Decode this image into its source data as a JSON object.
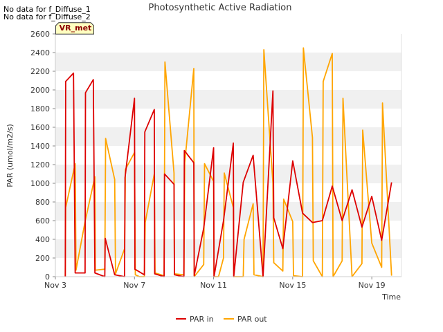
{
  "notes": [
    "No data for f_Diffuse_1",
    "No data for f_Diffuse_2"
  ],
  "badge": "VR_met",
  "colors": {
    "par_in": "#dd0000",
    "par_out": "#ffa500",
    "band": "#f0f0f0",
    "badge_bg": "#ffffc0"
  },
  "chart_data": {
    "type": "line",
    "title": "Photosynthetic Active Radiation",
    "xlabel": "Time",
    "ylabel": "PAR (umol/m2/s)",
    "ylim": [
      0,
      2600
    ],
    "xlim": [
      "2023-11-03T00:00",
      "2023-11-20T12:00"
    ],
    "yticks": [
      0,
      200,
      400,
      600,
      800,
      1000,
      1200,
      1400,
      1600,
      1800,
      2000,
      2200,
      2400,
      2600
    ],
    "xticks": [
      {
        "label": "Nov 3",
        "x": "2023-11-03T00:00"
      },
      {
        "label": "Nov 7",
        "x": "2023-11-07T00:00"
      },
      {
        "label": "Nov 11",
        "x": "2023-11-11T00:00"
      },
      {
        "label": "Nov 15",
        "x": "2023-11-15T00:00"
      },
      {
        "label": "Nov 19",
        "x": "2023-11-19T00:00"
      }
    ],
    "legend_position": "bottom",
    "series": [
      {
        "name": "PAR in",
        "points": [
          [
            "2023-11-03T12:00",
            0
          ],
          [
            "2023-11-03T12:30",
            2090
          ],
          [
            "2023-11-03T22:00",
            2180
          ],
          [
            "2023-11-04T00:00",
            40
          ],
          [
            "2023-11-04T12:00",
            40
          ],
          [
            "2023-11-04T12:30",
            1970
          ],
          [
            "2023-11-04T22:00",
            2110
          ],
          [
            "2023-11-05T00:00",
            40
          ],
          [
            "2023-11-05T12:00",
            0
          ],
          [
            "2023-11-05T12:30",
            410
          ],
          [
            "2023-11-06T00:00",
            20
          ],
          [
            "2023-11-06T12:00",
            0
          ],
          [
            "2023-11-06T12:30",
            1060
          ],
          [
            "2023-11-07T00:00",
            1910
          ],
          [
            "2023-11-07T00:30",
            80
          ],
          [
            "2023-11-07T12:00",
            20
          ],
          [
            "2023-11-07T12:30",
            1550
          ],
          [
            "2023-11-08T00:00",
            1790
          ],
          [
            "2023-11-08T00:30",
            30
          ],
          [
            "2023-11-08T12:00",
            0
          ],
          [
            "2023-11-08T12:30",
            1100
          ],
          [
            "2023-11-09T00:00",
            990
          ],
          [
            "2023-11-09T00:30",
            20
          ],
          [
            "2023-11-09T12:00",
            0
          ],
          [
            "2023-11-09T12:30",
            1350
          ],
          [
            "2023-11-10T00:00",
            1220
          ],
          [
            "2023-11-10T00:30",
            10
          ],
          [
            "2023-11-10T12:00",
            520
          ],
          [
            "2023-11-11T00:00",
            1380
          ],
          [
            "2023-11-11T00:30",
            0
          ],
          [
            "2023-11-11T12:00",
            600
          ],
          [
            "2023-11-12T00:00",
            1430
          ],
          [
            "2023-11-12T00:30",
            0
          ],
          [
            "2023-11-12T12:00",
            1010
          ],
          [
            "2023-11-13T00:00",
            1300
          ],
          [
            "2023-11-13T12:00",
            0
          ],
          [
            "2023-11-14T00:00",
            1990
          ],
          [
            "2023-11-14T01:00",
            630
          ],
          [
            "2023-11-14T12:00",
            300
          ],
          [
            "2023-11-15T00:00",
            1240
          ],
          [
            "2023-11-15T12:00",
            680
          ],
          [
            "2023-11-16T00:00",
            580
          ],
          [
            "2023-11-16T12:00",
            600
          ],
          [
            "2023-11-17T00:00",
            970
          ],
          [
            "2023-11-17T12:00",
            600
          ],
          [
            "2023-11-18T00:00",
            930
          ],
          [
            "2023-11-18T12:00",
            530
          ],
          [
            "2023-11-19T00:00",
            860
          ],
          [
            "2023-11-19T12:00",
            390
          ],
          [
            "2023-11-20T00:00",
            1010
          ]
        ]
      },
      {
        "name": "PAR out",
        "points": [
          [
            "2023-11-03T12:00",
            0
          ],
          [
            "2023-11-03T12:30",
            740
          ],
          [
            "2023-11-04T00:00",
            1210
          ],
          [
            "2023-11-04T01:00",
            70
          ],
          [
            "2023-11-04T12:00",
            590
          ],
          [
            "2023-11-05T00:00",
            1070
          ],
          [
            "2023-11-05T00:30",
            70
          ],
          [
            "2023-11-05T12:00",
            80
          ],
          [
            "2023-11-05T13:00",
            1480
          ],
          [
            "2023-11-06T00:00",
            1040
          ],
          [
            "2023-11-06T01:00",
            30
          ],
          [
            "2023-11-06T12:00",
            300
          ],
          [
            "2023-11-06T13:00",
            1150
          ],
          [
            "2023-11-07T00:00",
            1330
          ],
          [
            "2023-11-07T01:00",
            20
          ],
          [
            "2023-11-07T06:00",
            0
          ],
          [
            "2023-11-07T12:00",
            0
          ],
          [
            "2023-11-07T13:00",
            580
          ],
          [
            "2023-11-08T00:00",
            1100
          ],
          [
            "2023-11-08T01:00",
            40
          ],
          [
            "2023-11-08T12:00",
            10
          ],
          [
            "2023-11-08T13:00",
            2300
          ],
          [
            "2023-11-09T00:00",
            1110
          ],
          [
            "2023-11-09T00:30",
            30
          ],
          [
            "2023-11-09T12:00",
            20
          ],
          [
            "2023-11-09T13:00",
            1220
          ],
          [
            "2023-11-10T00:00",
            2230
          ],
          [
            "2023-11-10T00:30",
            0
          ],
          [
            "2023-11-10T12:00",
            130
          ],
          [
            "2023-11-10T13:00",
            1210
          ],
          [
            "2023-11-11T00:00",
            1020
          ],
          [
            "2023-11-11T00:30",
            0
          ],
          [
            "2023-11-11T06:00",
            0
          ],
          [
            "2023-11-11T12:00",
            200
          ],
          [
            "2023-11-11T13:00",
            1110
          ],
          [
            "2023-11-12T00:00",
            740
          ],
          [
            "2023-11-12T00:30",
            0
          ],
          [
            "2023-11-12T12:00",
            0
          ],
          [
            "2023-11-12T13:00",
            400
          ],
          [
            "2023-11-13T00:00",
            780
          ],
          [
            "2023-11-13T01:00",
            20
          ],
          [
            "2023-11-13T12:00",
            0
          ],
          [
            "2023-11-13T13:00",
            2430
          ],
          [
            "2023-11-14T00:00",
            1000
          ],
          [
            "2023-11-14T01:00",
            150
          ],
          [
            "2023-11-14T12:00",
            60
          ],
          [
            "2023-11-14T13:00",
            830
          ],
          [
            "2023-11-15T00:00",
            590
          ],
          [
            "2023-11-15T01:00",
            10
          ],
          [
            "2023-11-15T12:00",
            0
          ],
          [
            "2023-11-15T13:00",
            2450
          ],
          [
            "2023-11-16T00:00",
            1490
          ],
          [
            "2023-11-16T01:00",
            170
          ],
          [
            "2023-11-16T12:00",
            0
          ],
          [
            "2023-11-16T13:00",
            2090
          ],
          [
            "2023-11-17T00:00",
            2390
          ],
          [
            "2023-11-17T01:00",
            0
          ],
          [
            "2023-11-17T12:00",
            170
          ],
          [
            "2023-11-17T13:00",
            1910
          ],
          [
            "2023-11-18T00:00",
            0
          ],
          [
            "2023-11-18T12:00",
            140
          ],
          [
            "2023-11-18T13:00",
            1570
          ],
          [
            "2023-11-19T00:00",
            360
          ],
          [
            "2023-11-19T12:00",
            100
          ],
          [
            "2023-11-19T13:00",
            1860
          ],
          [
            "2023-11-20T00:00",
            10
          ]
        ]
      }
    ]
  }
}
